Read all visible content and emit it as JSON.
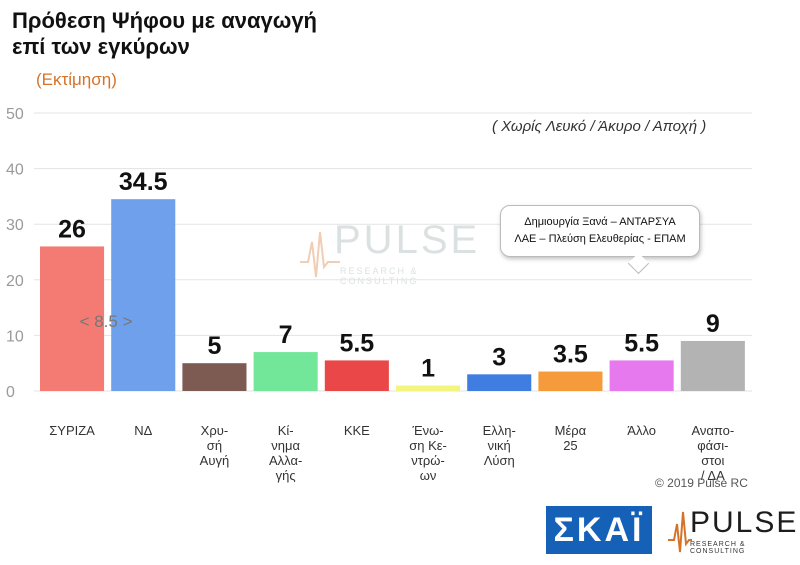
{
  "header": {
    "title_line1": "Πρόθεση Ψήφου με αναγωγή",
    "title_line2": "επί των εγκύρων",
    "subtitle": "(Εκτίμηση)",
    "note": "( Χωρίς Λευκό / Άκυρο / Αποχή )"
  },
  "callout": {
    "line1": "Δημιουργία Ξανά – ΑΝΤΑΡΣΥΑ",
    "line2": "ΛΑΕ – Πλεύση Ελευθερίας - ΕΠΑΜ"
  },
  "gap_label": "< 8.5 >",
  "copyright": "© 2019 Pulse RC",
  "logos": {
    "skai": "ΣΚΑΪ",
    "pulse_word": "PULSE",
    "pulse_sub": "RESEARCH & CONSULTING"
  },
  "chart_data": {
    "type": "bar",
    "ylim": [
      0,
      50
    ],
    "yticks": [
      0,
      10,
      20,
      30,
      40,
      50
    ],
    "grid": true,
    "categories": [
      {
        "label": [
          "ΣΥΡΙΖΑ"
        ],
        "value": 26,
        "display": "26",
        "color": "#f47b73"
      },
      {
        "label": [
          "ΝΔ"
        ],
        "value": 34.5,
        "display": "34.5",
        "color": "#6fa0ec"
      },
      {
        "label": [
          "Χρυ-",
          "σή",
          "Αυγή"
        ],
        "value": 5,
        "display": "5",
        "color": "#7d5b52"
      },
      {
        "label": [
          "Κί-",
          "νημα",
          "Αλλα-",
          "γής"
        ],
        "value": 7,
        "display": "7",
        "color": "#72e79a"
      },
      {
        "label": [
          "ΚΚΕ"
        ],
        "value": 5.5,
        "display": "5.5",
        "color": "#ea4848"
      },
      {
        "label": [
          "Ένω-",
          "ση Κε-",
          "ντρώ-",
          "ων"
        ],
        "value": 1,
        "display": "1",
        "color": "#f4f57e"
      },
      {
        "label": [
          "Ελλη-",
          "νική",
          "Λύση"
        ],
        "value": 3,
        "display": "3",
        "color": "#3f7ee0"
      },
      {
        "label": [
          "Μέρα",
          "25"
        ],
        "value": 3.5,
        "display": "3.5",
        "color": "#f59b3b"
      },
      {
        "label": [
          "Άλλο"
        ],
        "value": 5.5,
        "display": "5.5",
        "color": "#e779ef"
      },
      {
        "label": [
          "Αναπο-",
          "φάσι-",
          "στοι",
          "/ ΔΑ"
        ],
        "value": 9,
        "display": "9",
        "color": "#b3b3b3"
      }
    ]
  }
}
